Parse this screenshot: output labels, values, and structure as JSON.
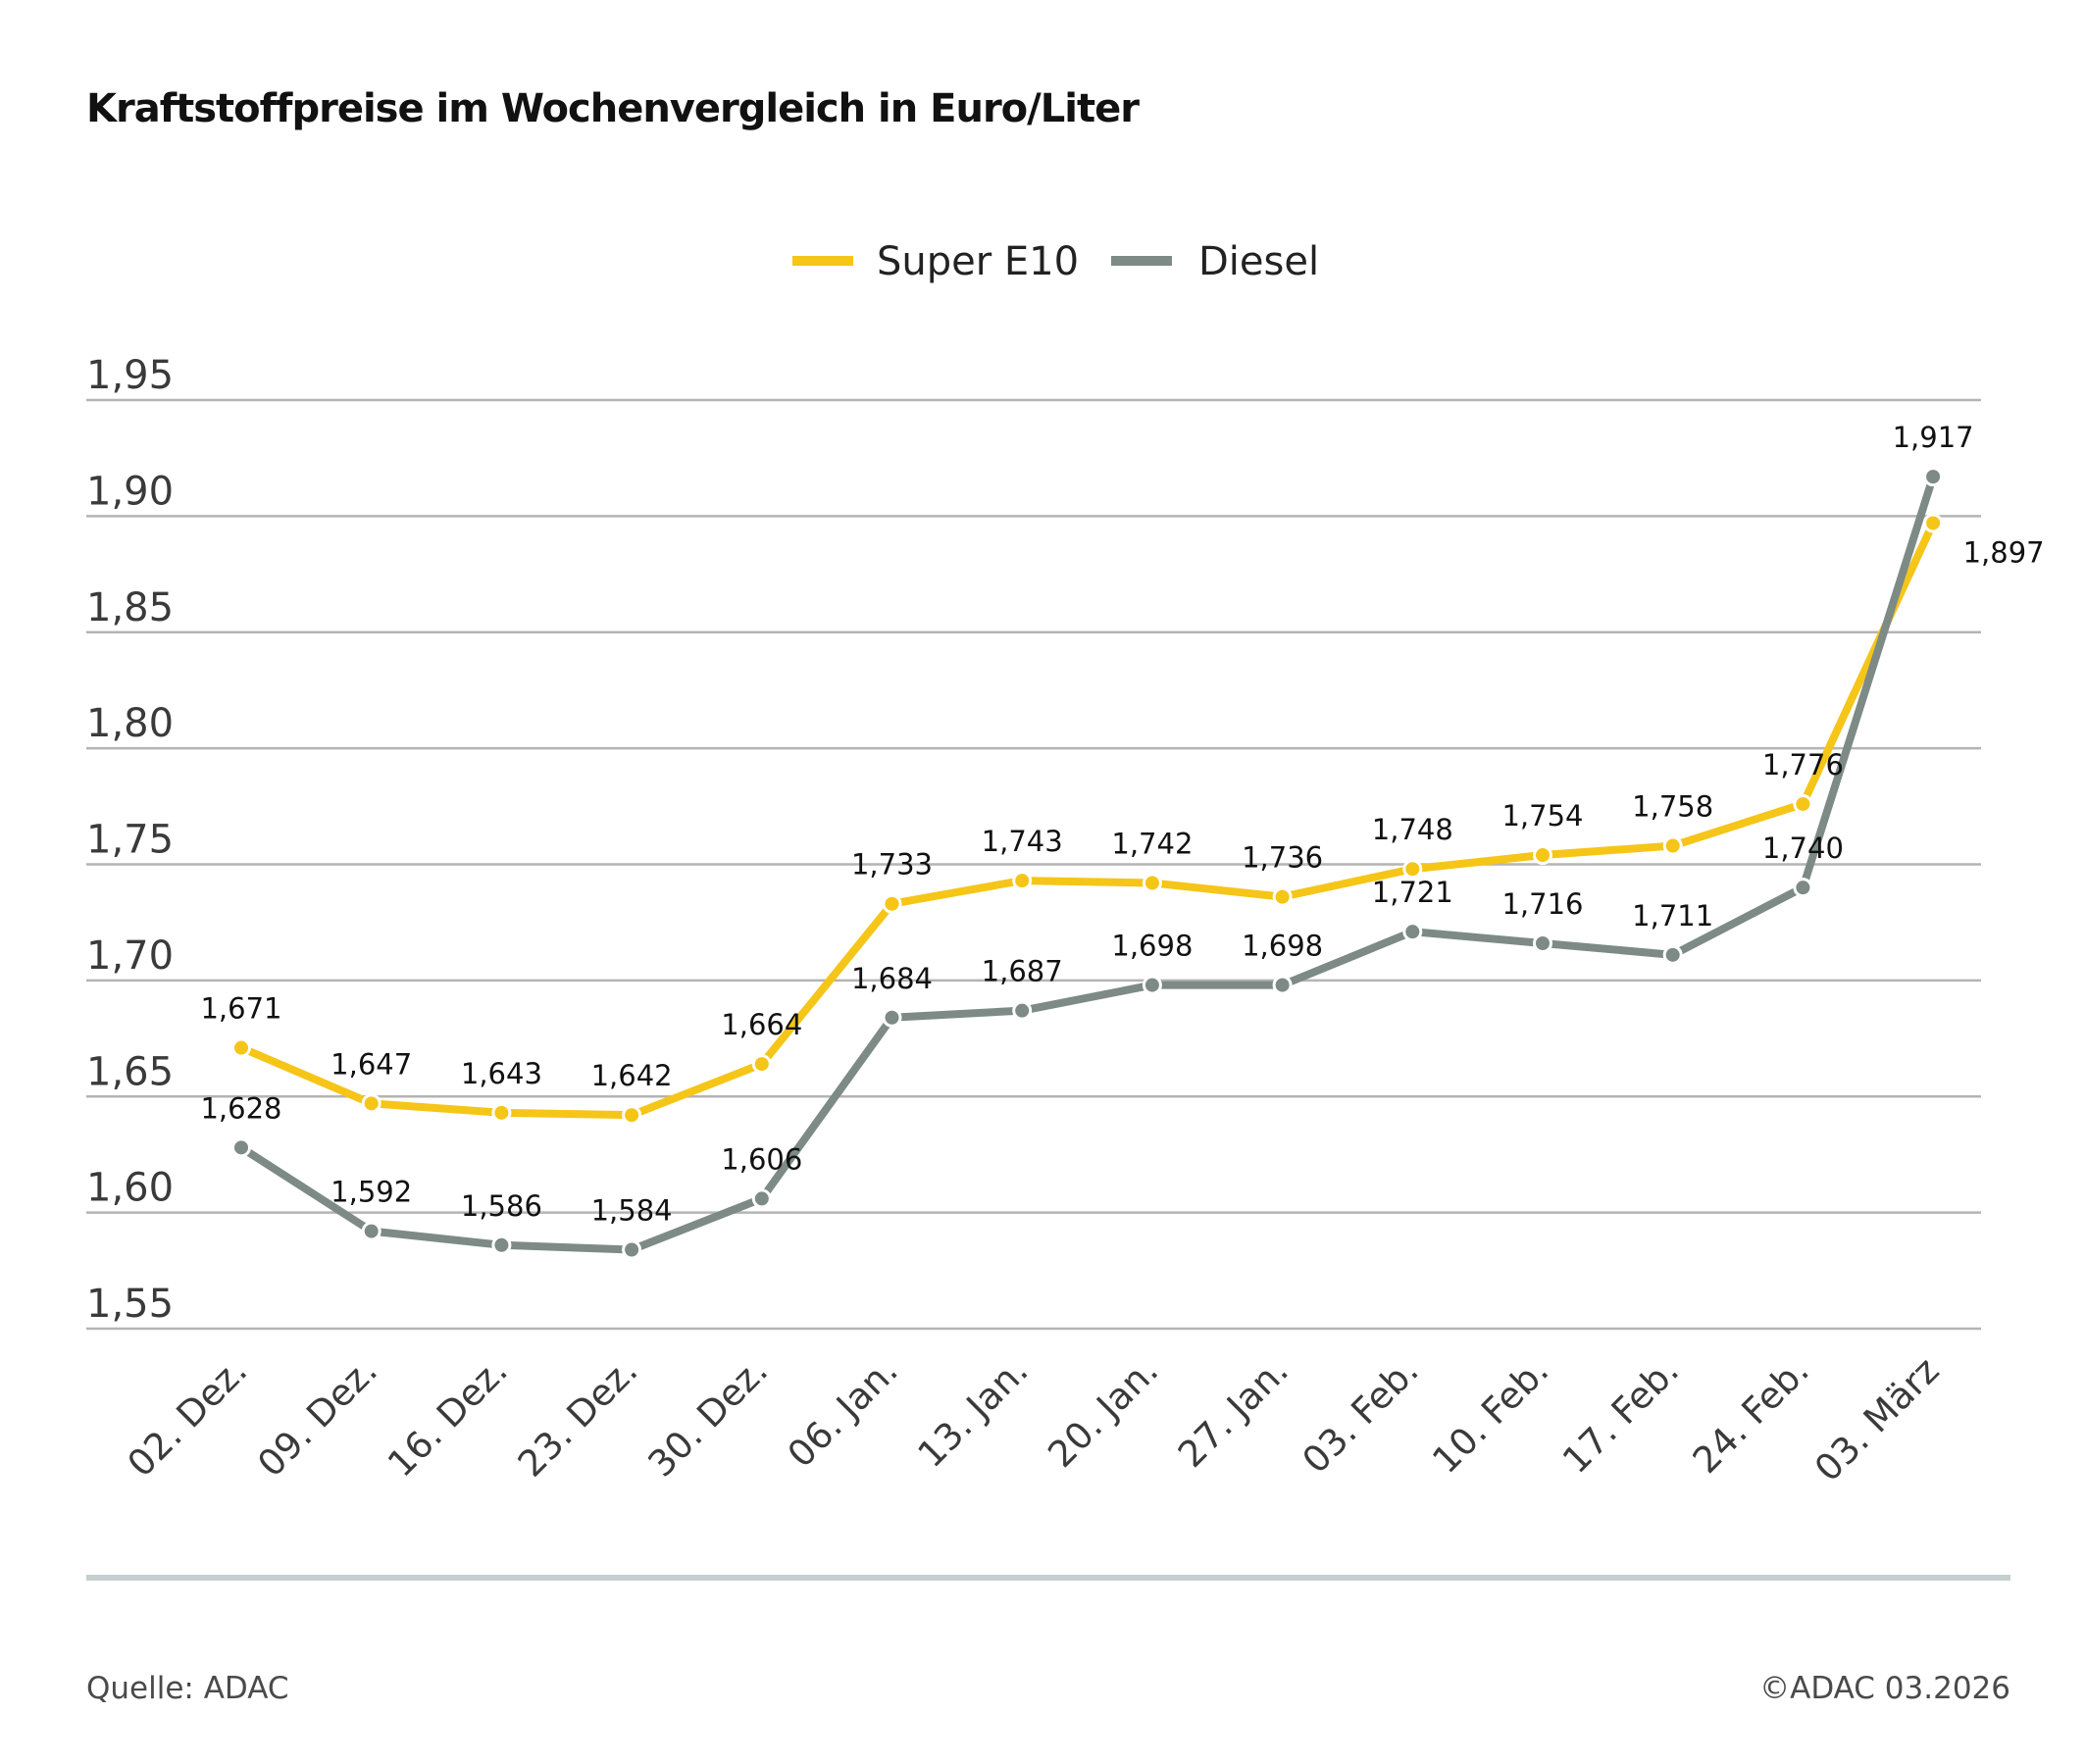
{
  "chart_data": {
    "type": "line",
    "title": "Kraftstoffpreise im Wochenvergleich in Euro/Liter",
    "categories": [
      "02. Dez.",
      "09. Dez.",
      "16. Dez.",
      "23. Dez.",
      "30. Dez.",
      "06. Jan.",
      "13. Jan.",
      "20. Jan.",
      "27. Jan.",
      "03. Feb.",
      "10. Feb.",
      "17. Feb.",
      "24. Feb.",
      "03. März"
    ],
    "series": [
      {
        "name": "Super E10",
        "color": "#f5c518",
        "values": [
          1.671,
          1.647,
          1.643,
          1.642,
          1.664,
          1.733,
          1.743,
          1.742,
          1.736,
          1.748,
          1.754,
          1.758,
          1.776,
          1.897
        ],
        "labels": [
          "1,671",
          "1,647",
          "1,643",
          "1,642",
          "1,664",
          "1,733",
          "1,743",
          "1,742",
          "1,736",
          "1,748",
          "1,754",
          "1,758",
          "1,776",
          "1,897"
        ]
      },
      {
        "name": "Diesel",
        "color": "#7d8a86",
        "values": [
          1.628,
          1.592,
          1.586,
          1.584,
          1.606,
          1.684,
          1.687,
          1.698,
          1.698,
          1.721,
          1.716,
          1.711,
          1.74,
          1.917
        ],
        "labels": [
          "1,628",
          "1,592",
          "1,586",
          "1,584",
          "1,606",
          "1,684",
          "1,687",
          "1,698",
          "1,698",
          "1,721",
          "1,716",
          "1,711",
          "1,740",
          "1,917"
        ]
      }
    ],
    "yticks": [
      1.55,
      1.6,
      1.65,
      1.7,
      1.75,
      1.8,
      1.85,
      1.9,
      1.95
    ],
    "ytick_labels": [
      "1,55",
      "1,60",
      "1,65",
      "1,70",
      "1,75",
      "1,80",
      "1,85",
      "1,90",
      "1,95"
    ],
    "ylim": [
      1.55,
      1.95
    ],
    "xlabel": "",
    "ylabel": "",
    "grid": true,
    "legend": "top-center"
  },
  "footer": {
    "source": "Quelle: ADAC",
    "copyright": "©ADAC 03.2026"
  }
}
